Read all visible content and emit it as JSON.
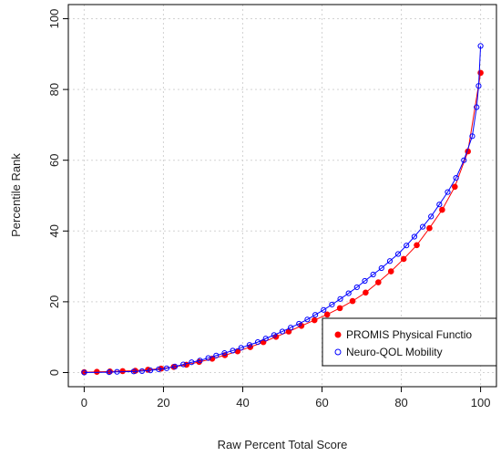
{
  "chart_data": {
    "type": "line",
    "xlabel": "Raw Percent Total Score",
    "ylabel": "Percentile Rank",
    "xlim": [
      -4,
      104
    ],
    "ylim": [
      -4,
      104
    ],
    "x_ticks": [
      0,
      20,
      40,
      60,
      80,
      100
    ],
    "y_ticks": [
      0,
      20,
      40,
      60,
      80,
      100
    ],
    "grid": true,
    "legend_position": "bottom-right",
    "series": [
      {
        "name": "PROMIS Physical Functio",
        "color": "#ff0000",
        "marker": "filled-circle",
        "points": [
          [
            0,
            0.1
          ],
          [
            3.2,
            0.2
          ],
          [
            6.5,
            0.3
          ],
          [
            9.7,
            0.4
          ],
          [
            12.9,
            0.5
          ],
          [
            16.1,
            0.8
          ],
          [
            19.4,
            1.1
          ],
          [
            22.6,
            1.6
          ],
          [
            25.8,
            2.2
          ],
          [
            29.0,
            3.0
          ],
          [
            32.3,
            3.9
          ],
          [
            35.5,
            4.9
          ],
          [
            38.7,
            6.0
          ],
          [
            41.9,
            7.2
          ],
          [
            45.2,
            8.6
          ],
          [
            48.4,
            10.1
          ],
          [
            51.6,
            11.6
          ],
          [
            54.8,
            13.2
          ],
          [
            58.1,
            14.8
          ],
          [
            61.3,
            16.4
          ],
          [
            64.5,
            18.2
          ],
          [
            67.7,
            20.2
          ],
          [
            71.0,
            22.6
          ],
          [
            74.2,
            25.5
          ],
          [
            77.4,
            28.6
          ],
          [
            80.6,
            32.1
          ],
          [
            83.9,
            36.0
          ],
          [
            87.1,
            40.8
          ],
          [
            90.3,
            46.0
          ],
          [
            93.5,
            52.5
          ],
          [
            96.8,
            62.5
          ],
          [
            100,
            84.7
          ]
        ]
      },
      {
        "name": "Neuro-QOL Mobility",
        "color": "#0000ff",
        "marker": "open-circle",
        "points": [
          [
            0,
            0
          ],
          [
            6.3,
            0.1
          ],
          [
            8.3,
            0.2
          ],
          [
            12.5,
            0.3
          ],
          [
            14.6,
            0.4
          ],
          [
            16.7,
            0.6
          ],
          [
            18.8,
            0.9
          ],
          [
            20.8,
            1.2
          ],
          [
            22.9,
            1.7
          ],
          [
            25.0,
            2.3
          ],
          [
            27.1,
            2.9
          ],
          [
            29.2,
            3.4
          ],
          [
            31.3,
            4.1
          ],
          [
            33.3,
            4.8
          ],
          [
            35.4,
            5.5
          ],
          [
            37.5,
            6.2
          ],
          [
            39.6,
            7.0
          ],
          [
            41.7,
            7.8
          ],
          [
            43.8,
            8.6
          ],
          [
            45.8,
            9.6
          ],
          [
            47.9,
            10.6
          ],
          [
            50.0,
            11.6
          ],
          [
            52.1,
            12.7
          ],
          [
            54.2,
            13.8
          ],
          [
            56.3,
            15.0
          ],
          [
            58.3,
            16.3
          ],
          [
            60.4,
            17.7
          ],
          [
            62.5,
            19.2
          ],
          [
            64.6,
            20.8
          ],
          [
            66.7,
            22.4
          ],
          [
            68.8,
            24.1
          ],
          [
            70.8,
            25.9
          ],
          [
            72.9,
            27.7
          ],
          [
            75.0,
            29.5
          ],
          [
            77.1,
            31.5
          ],
          [
            79.2,
            33.5
          ],
          [
            81.3,
            35.9
          ],
          [
            83.3,
            38.4
          ],
          [
            85.4,
            41.2
          ],
          [
            87.5,
            44.1
          ],
          [
            89.6,
            47.5
          ],
          [
            91.7,
            51.0
          ],
          [
            93.8,
            55.0
          ],
          [
            95.8,
            60.0
          ],
          [
            97.9,
            66.8
          ],
          [
            99.0,
            75.0
          ],
          [
            99.5,
            81.0
          ],
          [
            100,
            92.3
          ]
        ]
      }
    ]
  }
}
